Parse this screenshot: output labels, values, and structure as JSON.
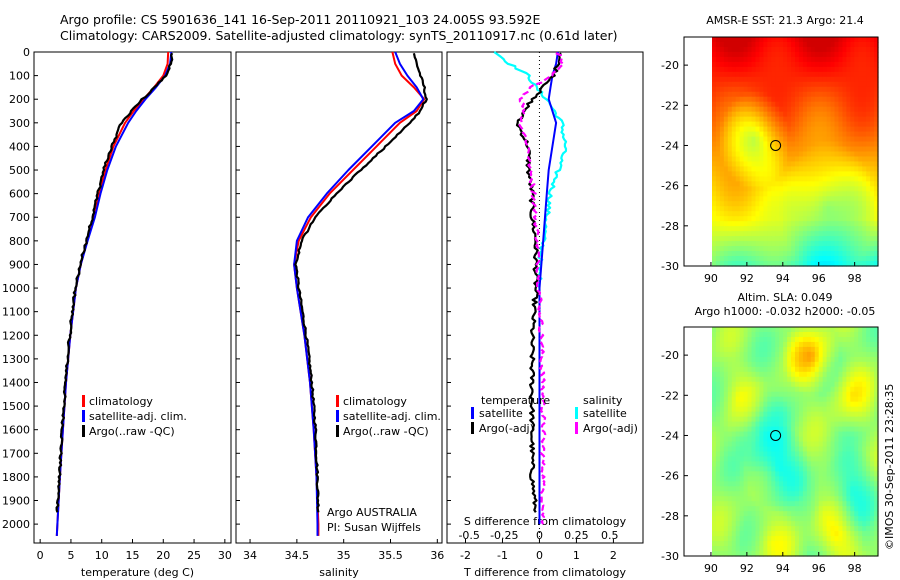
{
  "header": {
    "line1": "Argo profile: CS 5901636_141 16-Sep-2011 20110921_103 24.005S 93.592E",
    "line2": "Climatology: CARS2009. Satellite-adjusted climatology: synTS_20110917.nc (0.61d later)"
  },
  "credit": "©IMOS 30-Sep-2011 23:28:35",
  "colors": {
    "climatology": "#ff0000",
    "satellite": "#0000ff",
    "argo": "#000000",
    "satellite_s": "#00ffff",
    "argo_s": "#ff00ff"
  },
  "chart_data": [
    {
      "type": "line",
      "name": "temperature-profile",
      "xlabel": "temperature (deg C)",
      "xlim": [
        -1,
        31
      ],
      "xticks": [
        0,
        5,
        10,
        15,
        20,
        25,
        30
      ],
      "ylim": [
        0,
        2080
      ],
      "yticks": [
        0,
        100,
        200,
        300,
        400,
        500,
        600,
        700,
        800,
        900,
        1000,
        1100,
        1200,
        1300,
        1400,
        1500,
        1600,
        1700,
        1800,
        1900,
        2000
      ],
      "legend": [
        "climatology",
        "satellite-adj. clim.",
        "Argo(..raw -QC)"
      ],
      "legend_position": "bottom-right",
      "series": [
        {
          "name": "climatology",
          "color": "#ff0000",
          "depth": [
            0,
            50,
            100,
            150,
            200,
            250,
            300,
            400,
            500,
            600,
            700,
            800,
            900,
            1000,
            1200,
            1400,
            1600,
            1800,
            2000,
            2050
          ],
          "values": [
            20.8,
            20.7,
            20.0,
            18.5,
            16.8,
            15.2,
            13.8,
            11.9,
            10.6,
            9.6,
            8.7,
            7.6,
            6.6,
            5.8,
            4.9,
            4.2,
            3.7,
            3.2,
            2.8,
            2.7
          ]
        },
        {
          "name": "satellite-adj. clim.",
          "color": "#0000ff",
          "depth": [
            0,
            50,
            100,
            150,
            200,
            250,
            300,
            400,
            500,
            600,
            700,
            800,
            900,
            1000,
            1200,
            1400,
            1600,
            1800,
            2000,
            2050
          ],
          "values": [
            21.3,
            21.1,
            20.3,
            18.8,
            17.1,
            15.6,
            14.3,
            12.3,
            10.9,
            9.8,
            8.9,
            7.7,
            6.6,
            5.8,
            4.9,
            4.2,
            3.7,
            3.2,
            2.8,
            2.7
          ]
        },
        {
          "name": "Argo(..raw -QC)",
          "color": "#000000",
          "depth": [
            5,
            50,
            100,
            150,
            200,
            250,
            300,
            400,
            500,
            600,
            700,
            800,
            900,
            1000,
            1200,
            1400,
            1600,
            1800,
            1950
          ],
          "values": [
            21.4,
            21.2,
            20.4,
            18.6,
            16.6,
            14.8,
            13.2,
            11.6,
            10.3,
            9.4,
            8.5,
            7.5,
            6.5,
            5.7,
            4.8,
            4.1,
            3.6,
            3.1,
            2.8
          ]
        }
      ]
    },
    {
      "type": "line",
      "name": "salinity-profile",
      "xlabel": "salinity",
      "xlim": [
        33.85,
        36.05
      ],
      "xticks": [
        34,
        34.5,
        35,
        35.5,
        36
      ],
      "ylim": [
        0,
        2080
      ],
      "legend": [
        "climatology",
        "satellite-adj. clim.",
        "Argo(..raw -QC)"
      ],
      "legend_position": "bottom-right",
      "annotation": [
        "Argo AUSTRALIA",
        "PI: Susan Wijffels"
      ],
      "series": [
        {
          "name": "climatology",
          "color": "#ff0000",
          "depth": [
            0,
            50,
            100,
            150,
            200,
            250,
            300,
            400,
            500,
            600,
            700,
            800,
            900,
            1000,
            1200,
            1400,
            1600,
            1800,
            2000,
            2050
          ],
          "values": [
            35.52,
            35.55,
            35.62,
            35.75,
            35.86,
            35.78,
            35.6,
            35.35,
            35.1,
            34.85,
            34.65,
            34.52,
            34.47,
            34.5,
            34.58,
            34.64,
            34.68,
            34.71,
            34.73,
            34.73
          ]
        },
        {
          "name": "satellite-adj. clim.",
          "color": "#0000ff",
          "depth": [
            0,
            50,
            100,
            150,
            200,
            250,
            300,
            400,
            500,
            600,
            700,
            800,
            900,
            1000,
            1200,
            1400,
            1600,
            1800,
            2000,
            2050
          ],
          "values": [
            35.55,
            35.6,
            35.68,
            35.78,
            35.85,
            35.75,
            35.55,
            35.3,
            35.05,
            34.82,
            34.62,
            34.5,
            34.47,
            34.5,
            34.58,
            34.64,
            34.68,
            34.71,
            34.72,
            34.72
          ]
        },
        {
          "name": "Argo(..raw -QC)",
          "color": "#000000",
          "depth": [
            5,
            50,
            100,
            150,
            200,
            250,
            300,
            400,
            500,
            600,
            700,
            800,
            900,
            1000,
            1200,
            1400,
            1600,
            1800,
            1950
          ],
          "values": [
            35.75,
            35.78,
            35.82,
            35.86,
            35.88,
            35.82,
            35.7,
            35.45,
            35.18,
            34.92,
            34.7,
            34.55,
            34.49,
            34.52,
            34.6,
            34.66,
            34.7,
            34.72,
            34.73
          ]
        }
      ]
    },
    {
      "type": "line",
      "name": "difference-profile",
      "xlabel": "T difference from climatology",
      "xlabel_top": "S difference from climatology",
      "xlim": [
        -2.5,
        2.8
      ],
      "xticks_T": [
        -2,
        -1,
        0,
        1,
        2
      ],
      "xticks_S": [
        {
          "label": "-0.5",
          "value": -1.9
        },
        {
          "label": "-0.25",
          "value": -0.95
        },
        {
          "label": "0",
          "value": 0
        },
        {
          "label": "0.25",
          "value": 1.0
        },
        {
          "label": "0.5",
          "value": 1.9
        }
      ],
      "ylim": [
        0,
        2080
      ],
      "legend_temperature_title": "temperature",
      "legend_salinity_title": "salinity",
      "legend": [
        "satellite",
        "Argo(-adj)",
        "satellite",
        "Argo(-adj)"
      ],
      "legend_position": "bottom",
      "series": [
        {
          "name": "satellite",
          "group": "temperature",
          "color": "#0000ff",
          "depth": [
            0,
            50,
            100,
            150,
            200,
            250,
            300,
            400,
            500,
            600,
            700,
            800,
            1000,
            1500,
            2000
          ],
          "values": [
            0.5,
            0.45,
            0.35,
            0.3,
            0.25,
            0.35,
            0.45,
            0.35,
            0.25,
            0.2,
            0.15,
            0.1,
            0.0,
            0.0,
            0.0
          ]
        },
        {
          "name": "Argo(-adj)",
          "group": "temperature",
          "color": "#000000",
          "depth": [
            5,
            50,
            100,
            150,
            200,
            250,
            300,
            400,
            500,
            600,
            700,
            800,
            1000,
            1200,
            1500,
            1800,
            1950
          ],
          "values": [
            0.6,
            0.5,
            0.4,
            0.1,
            -0.2,
            -0.4,
            -0.6,
            -0.3,
            -0.3,
            -0.2,
            -0.2,
            -0.1,
            -0.1,
            -0.2,
            -0.2,
            -0.2,
            -0.1
          ]
        },
        {
          "name": "satellite",
          "group": "salinity",
          "color": "#00ffff",
          "depth": [
            0,
            50,
            100,
            150,
            200,
            300,
            400,
            500,
            600,
            700,
            800,
            900,
            1000
          ],
          "values": [
            -1.2,
            -0.8,
            -0.3,
            -0.1,
            0.2,
            0.6,
            0.7,
            0.5,
            0.3,
            0.2,
            0.1,
            0.0,
            0.0
          ]
        },
        {
          "name": "Argo(-adj)",
          "group": "salinity",
          "color": "#ff00ff",
          "depth": [
            5,
            50,
            100,
            150,
            200,
            250,
            300,
            400,
            500,
            600,
            700,
            800,
            1000,
            1200,
            1500,
            1800,
            2000
          ],
          "values": [
            0.5,
            0.6,
            0.3,
            -0.2,
            -0.5,
            -0.4,
            -0.5,
            -0.3,
            -0.25,
            -0.15,
            -0.1,
            -0.05,
            0.0,
            0.05,
            0.1,
            0.1,
            0.1
          ]
        }
      ]
    },
    {
      "type": "heatmap",
      "name": "sst-map",
      "title": "AMSR-E SST: 21.3 Argo: 21.4",
      "xlim": [
        88.5,
        99.3
      ],
      "xticks": [
        90,
        92,
        94,
        96,
        98
      ],
      "ylim": [
        -30,
        -18.6
      ],
      "yticks": [
        -20,
        -22,
        -24,
        -26,
        -28,
        -30
      ],
      "marker": {
        "lon": 93.6,
        "lat": -24.0
      },
      "colormap": "jet"
    },
    {
      "type": "heatmap",
      "name": "sla-map",
      "title": [
        "Altim. SLA: 0.049",
        "Argo h1000: -0.032 h2000: -0.05"
      ],
      "xlim": [
        88.5,
        99.3
      ],
      "xticks": [
        90,
        92,
        94,
        96,
        98
      ],
      "ylim": [
        -30,
        -18.6
      ],
      "yticks": [
        -20,
        -22,
        -24,
        -26,
        -28,
        -30
      ],
      "marker": {
        "lon": 93.6,
        "lat": -24.0
      },
      "colormap": "jet"
    }
  ]
}
